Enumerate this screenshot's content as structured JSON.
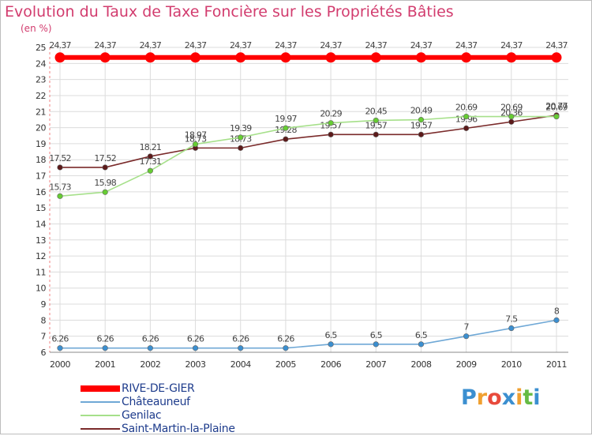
{
  "chart_data": {
    "type": "line",
    "title": "Evolution du Taux de Taxe Foncière sur les Propriétés Bâties",
    "ylabel": "(en %)",
    "xlabel": "",
    "categories": [
      "2000",
      "2001",
      "2002",
      "2003",
      "2004",
      "2005",
      "2006",
      "2007",
      "2008",
      "2009",
      "2010",
      "2011"
    ],
    "ylim": [
      6,
      25
    ],
    "yticks": [
      6,
      7,
      8,
      9,
      10,
      11,
      12,
      13,
      14,
      15,
      16,
      17,
      18,
      19,
      20,
      21,
      22,
      23,
      24,
      25
    ],
    "grid": true,
    "legend_position": "bottom-left",
    "series": [
      {
        "name": "RIVE-DE-GIER",
        "color": "#ff0000",
        "marker_color": "#ff0000",
        "values": [
          24.37,
          24.37,
          24.37,
          24.37,
          24.37,
          24.37,
          24.37,
          24.37,
          24.37,
          24.37,
          24.37,
          24.37
        ],
        "labels": [
          "24.37",
          "24.37",
          "24.37",
          "24.37",
          "24.37",
          "24.37",
          "24.37",
          "24.37",
          "24.37",
          "24.37",
          "24.37",
          "24.37"
        ]
      },
      {
        "name": "Châteauneuf",
        "color": "#6fa8d6",
        "marker_color": "#3b8fd0",
        "values": [
          6.26,
          6.26,
          6.26,
          6.26,
          6.26,
          6.26,
          6.5,
          6.5,
          6.5,
          7,
          7.5,
          8
        ],
        "labels": [
          "6.26",
          "6.26",
          "6.26",
          "6.26",
          "6.26",
          "6.26",
          "6.5",
          "6.5",
          "6.5",
          "7",
          "7.5",
          "8"
        ]
      },
      {
        "name": "Genilac",
        "color": "#a6e08a",
        "marker_color": "#66cc33",
        "values": [
          15.73,
          15.98,
          17.31,
          18.97,
          19.39,
          19.97,
          20.29,
          20.45,
          20.49,
          20.69,
          20.69,
          20.69
        ],
        "labels": [
          "15.73",
          "15.98",
          "17.31",
          "18.97",
          "19.39",
          "19.97",
          "20.29",
          "20.45",
          "20.49",
          "20.69",
          "20.69",
          "20.69"
        ]
      },
      {
        "name": "Saint-Martin-la-Plaine",
        "color": "#7a2a2a",
        "marker_color": "#5c1a1a",
        "values": [
          17.52,
          17.52,
          18.21,
          18.73,
          18.73,
          19.28,
          19.57,
          19.57,
          19.57,
          19.96,
          20.36,
          20.77
        ],
        "labels": [
          "17.52",
          "17.52",
          "18.21",
          "18.73",
          "18.73",
          "19.28",
          "19.57",
          "19.57",
          "19.57",
          "19.96",
          "20.36",
          "20.77"
        ]
      }
    ]
  },
  "brand": {
    "letters": [
      "P",
      "r",
      "o",
      "x",
      "i",
      "t",
      "i"
    ],
    "colors": [
      "#3b8fd0",
      "#f0a030",
      "#e84a3c",
      "#3b8fd0",
      "#f0a030",
      "#66bb44",
      "#3b8fd0"
    ]
  }
}
